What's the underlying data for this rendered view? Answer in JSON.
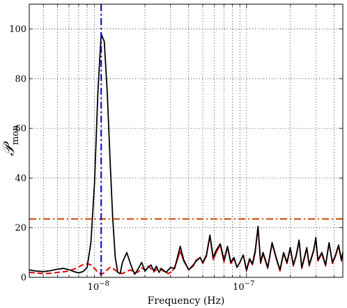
{
  "chart_data": {
    "type": "line",
    "xlabel": "Frequency (Hz)",
    "ylabel_main": "𝒫",
    "ylabel_sub": "mon",
    "x_scale": "log",
    "xlim": [
      3.2e-09,
      4.6e-07
    ],
    "ylim": [
      0,
      110
    ],
    "x_tick_labels": [
      {
        "value": 1e-08,
        "mantissa": "10",
        "exponent": "−8"
      },
      {
        "value": 1e-07,
        "mantissa": "10",
        "exponent": "−7"
      }
    ],
    "y_ticks": [
      0,
      20,
      40,
      60,
      80,
      100
    ],
    "grid": true,
    "threshold": {
      "y": 23.5,
      "color": "#cc4400"
    },
    "marker_frequency": {
      "x": 1e-08,
      "color": "#0000cc"
    },
    "series": [
      {
        "color": "#000000",
        "points": [
          [
            3.2e-09,
            3
          ],
          [
            3.5e-09,
            2.6
          ],
          [
            4e-09,
            2.3
          ],
          [
            4.5e-09,
            2.7
          ],
          [
            5e-09,
            3.3
          ],
          [
            5.5e-09,
            3.6
          ],
          [
            6e-09,
            3.1
          ],
          [
            6.5e-09,
            2.3
          ],
          [
            7e-09,
            1.8
          ],
          [
            7.5e-09,
            2.3
          ],
          [
            8e-09,
            4
          ],
          [
            8.5e-09,
            14
          ],
          [
            9e-09,
            38
          ],
          [
            9.5e-09,
            75
          ],
          [
            1e-08,
            98
          ],
          [
            1.05e-08,
            95
          ],
          [
            1.1e-08,
            75
          ],
          [
            1.15e-08,
            48
          ],
          [
            1.2e-08,
            24
          ],
          [
            1.25e-08,
            8
          ],
          [
            1.3e-08,
            2
          ],
          [
            1.35e-08,
            1.5
          ],
          [
            1.4e-08,
            6
          ],
          [
            1.5e-08,
            10
          ],
          [
            1.6e-08,
            5
          ],
          [
            1.7e-08,
            1.2
          ],
          [
            1.8e-08,
            3.5
          ],
          [
            1.9e-08,
            6
          ],
          [
            2e-08,
            2.5
          ],
          [
            2.1e-08,
            4
          ],
          [
            2.2e-08,
            5
          ],
          [
            2.3e-08,
            2.6
          ],
          [
            2.4e-08,
            4.5
          ],
          [
            2.5e-08,
            2
          ],
          [
            2.6e-08,
            3.5
          ],
          [
            2.8e-08,
            2
          ],
          [
            3e-08,
            4
          ],
          [
            3.2e-08,
            3.5
          ],
          [
            3.5e-08,
            12.5
          ],
          [
            3.7e-08,
            7
          ],
          [
            4e-08,
            3
          ],
          [
            4.3e-08,
            5
          ],
          [
            4.5e-08,
            6.5
          ],
          [
            4.8e-08,
            8
          ],
          [
            5e-08,
            6
          ],
          [
            5.3e-08,
            9
          ],
          [
            5.6e-08,
            17
          ],
          [
            5.9e-08,
            8
          ],
          [
            6.2e-08,
            11
          ],
          [
            6.6e-08,
            13.5
          ],
          [
            7e-08,
            7
          ],
          [
            7.4e-08,
            12.5
          ],
          [
            7.8e-08,
            6
          ],
          [
            8.2e-08,
            8
          ],
          [
            8.6e-08,
            4
          ],
          [
            9e-08,
            6
          ],
          [
            9.5e-08,
            9
          ],
          [
            1e-07,
            3
          ],
          [
            1.05e-07,
            7.5
          ],
          [
            1.1e-07,
            5.5
          ],
          [
            1.15e-07,
            11
          ],
          [
            1.2e-07,
            20.5
          ],
          [
            1.25e-07,
            6
          ],
          [
            1.3e-07,
            10
          ],
          [
            1.4e-07,
            4
          ],
          [
            1.5e-07,
            14
          ],
          [
            1.6e-07,
            8
          ],
          [
            1.7e-07,
            3
          ],
          [
            1.8e-07,
            10
          ],
          [
            1.9e-07,
            6
          ],
          [
            2e-07,
            12
          ],
          [
            2.1e-07,
            5
          ],
          [
            2.2e-07,
            9
          ],
          [
            2.3e-07,
            15
          ],
          [
            2.4e-07,
            4
          ],
          [
            2.5e-07,
            8
          ],
          [
            2.6e-07,
            12
          ],
          [
            2.7e-07,
            5
          ],
          [
            2.9e-07,
            11
          ],
          [
            3e-07,
            16
          ],
          [
            3.1e-07,
            7
          ],
          [
            3.3e-07,
            10
          ],
          [
            3.5e-07,
            5
          ],
          [
            3.7e-07,
            14
          ],
          [
            3.9e-07,
            6
          ],
          [
            4.1e-07,
            9
          ],
          [
            4.3e-07,
            13
          ],
          [
            4.5e-07,
            7
          ],
          [
            4.6e-07,
            10
          ]
        ]
      },
      {
        "color": "#e00000",
        "dashed_start_until": 3.2e-08,
        "points": [
          [
            3.2e-09,
            2
          ],
          [
            3.6e-09,
            1.7
          ],
          [
            4e-09,
            1.5
          ],
          [
            4.5e-09,
            1.6
          ],
          [
            5e-09,
            2
          ],
          [
            5.5e-09,
            2.2
          ],
          [
            6e-09,
            2.6
          ],
          [
            6.5e-09,
            3.3
          ],
          [
            7e-09,
            4.2
          ],
          [
            7.5e-09,
            5.1
          ],
          [
            8e-09,
            5.5
          ],
          [
            8.5e-09,
            5
          ],
          [
            9e-09,
            3.6
          ],
          [
            9.5e-09,
            2
          ],
          [
            1e-08,
            1.3
          ],
          [
            1.05e-08,
            1.8
          ],
          [
            1.1e-08,
            3
          ],
          [
            1.15e-08,
            4
          ],
          [
            1.2e-08,
            3.6
          ],
          [
            1.3e-08,
            2.2
          ],
          [
            1.4e-08,
            1.5
          ],
          [
            1.5e-08,
            2.5
          ],
          [
            1.6e-08,
            3
          ],
          [
            1.7e-08,
            1.8
          ],
          [
            1.8e-08,
            2.2
          ],
          [
            1.9e-08,
            3.8
          ],
          [
            2e-08,
            3
          ],
          [
            2.1e-08,
            4.5
          ],
          [
            2.2e-08,
            3.5
          ],
          [
            2.3e-08,
            2.2
          ],
          [
            2.5e-08,
            4
          ],
          [
            2.7e-08,
            2.3
          ],
          [
            2.9e-08,
            1.5
          ],
          [
            3.1e-08,
            2.5
          ],
          [
            3.3e-08,
            6
          ],
          [
            3.5e-08,
            10.5
          ],
          [
            3.7e-08,
            6.5
          ],
          [
            4e-08,
            3
          ],
          [
            4.3e-08,
            4.5
          ],
          [
            4.5e-08,
            7
          ],
          [
            4.8e-08,
            8
          ],
          [
            5e-08,
            5.5
          ],
          [
            5.3e-08,
            8.5
          ],
          [
            5.6e-08,
            16.5
          ],
          [
            5.9e-08,
            7
          ],
          [
            6.2e-08,
            10
          ],
          [
            6.6e-08,
            13
          ],
          [
            7e-08,
            6
          ],
          [
            7.4e-08,
            12
          ],
          [
            7.8e-08,
            5.5
          ],
          [
            8.2e-08,
            7.5
          ],
          [
            8.6e-08,
            4
          ],
          [
            9e-08,
            6
          ],
          [
            9.5e-08,
            9
          ],
          [
            1e-07,
            2.5
          ],
          [
            1.05e-07,
            7
          ],
          [
            1.1e-07,
            5
          ],
          [
            1.15e-07,
            10
          ],
          [
            1.2e-07,
            20
          ],
          [
            1.25e-07,
            5.5
          ],
          [
            1.3e-07,
            9.5
          ],
          [
            1.4e-07,
            3.5
          ],
          [
            1.5e-07,
            13.5
          ],
          [
            1.6e-07,
            7.5
          ],
          [
            1.7e-07,
            2.5
          ],
          [
            1.8e-07,
            9.5
          ],
          [
            1.9e-07,
            5.5
          ],
          [
            2e-07,
            11.5
          ],
          [
            2.1e-07,
            4.5
          ],
          [
            2.2e-07,
            8.5
          ],
          [
            2.3e-07,
            14.5
          ],
          [
            2.4e-07,
            3.5
          ],
          [
            2.5e-07,
            7.5
          ],
          [
            2.6e-07,
            11.5
          ],
          [
            2.7e-07,
            4.5
          ],
          [
            2.9e-07,
            10.5
          ],
          [
            3e-07,
            15.5
          ],
          [
            3.1e-07,
            6.5
          ],
          [
            3.3e-07,
            9.5
          ],
          [
            3.5e-07,
            4.5
          ],
          [
            3.7e-07,
            13.5
          ],
          [
            3.9e-07,
            5.5
          ],
          [
            4.1e-07,
            8.5
          ],
          [
            4.3e-07,
            12.5
          ],
          [
            4.5e-07,
            6.5
          ],
          [
            4.6e-07,
            9.5
          ]
        ]
      }
    ]
  }
}
